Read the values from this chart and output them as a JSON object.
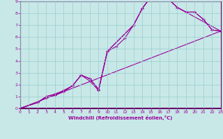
{
  "xlabel": "Windchill (Refroidissement éolien,°C)",
  "bg_color": "#c8e8e8",
  "line_color": "#990099",
  "grid_color": "#99cccc",
  "axis_color": "#660066",
  "xlim": [
    0,
    23
  ],
  "ylim": [
    0,
    9
  ],
  "xticks": [
    0,
    1,
    2,
    3,
    4,
    5,
    6,
    7,
    8,
    9,
    10,
    11,
    12,
    13,
    14,
    15,
    16,
    17,
    18,
    19,
    20,
    21,
    22,
    23
  ],
  "yticks": [
    0,
    1,
    2,
    3,
    4,
    5,
    6,
    7,
    8,
    9
  ],
  "line1_x": [
    0,
    2,
    3,
    4,
    5,
    6,
    7,
    8,
    9,
    10,
    13,
    14,
    15,
    16,
    17,
    18,
    19,
    20,
    21,
    22,
    23
  ],
  "line1_y": [
    0.0,
    0.5,
    1.0,
    1.2,
    1.5,
    1.9,
    2.8,
    2.5,
    1.6,
    4.8,
    7.0,
    8.4,
    9.4,
    9.35,
    9.2,
    8.5,
    8.1,
    8.1,
    7.5,
    6.6,
    6.5
  ],
  "line2_x": [
    0,
    2,
    3,
    4,
    5,
    6,
    7,
    8,
    9,
    10,
    13,
    14,
    15,
    16,
    17,
    18,
    23
  ],
  "line2_y": [
    0.0,
    0.5,
    0.9,
    1.1,
    1.4,
    1.9,
    2.8,
    2.3,
    1.5,
    4.8,
    7.0,
    8.4,
    9.4,
    9.35,
    9.2,
    8.5,
    6.5
  ],
  "line3_x": [
    0,
    23
  ],
  "line3_y": [
    0.0,
    6.5
  ],
  "line4_x": [
    0,
    2,
    3,
    4,
    5,
    6,
    7,
    8,
    9,
    10,
    11,
    12,
    13,
    14,
    15,
    16,
    17,
    18,
    19,
    20,
    21,
    22,
    23
  ],
  "line4_y": [
    0.0,
    0.5,
    1.0,
    1.2,
    1.5,
    1.9,
    2.8,
    2.5,
    1.6,
    4.8,
    5.2,
    5.9,
    7.0,
    8.4,
    9.4,
    9.35,
    9.2,
    8.5,
    8.1,
    8.1,
    7.5,
    6.6,
    6.5
  ]
}
